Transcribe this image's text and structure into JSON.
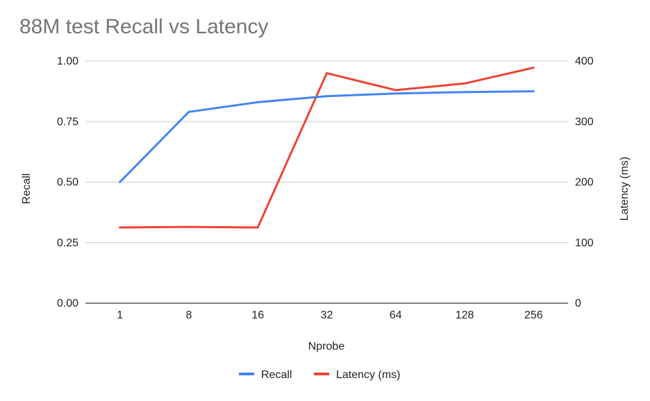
{
  "chart_data": {
    "type": "line",
    "title": "88M test Recall vs Latency",
    "categories": [
      "1",
      "8",
      "16",
      "32",
      "64",
      "128",
      "256"
    ],
    "xlabel": "Nprobe",
    "ylabel": "Recall",
    "ylabel_right": "Latency (ms)",
    "ylim": [
      0,
      1
    ],
    "ylim_right": [
      0,
      400
    ],
    "yticks": [
      "0.00",
      "0.25",
      "0.50",
      "0.75",
      "1.00"
    ],
    "yticks_right": [
      "0",
      "100",
      "200",
      "300",
      "400"
    ],
    "grid": true,
    "legend": "bottom",
    "series": [
      {
        "name": "Recall",
        "axis": "left",
        "color": "#4285F4",
        "values": [
          0.5,
          0.79,
          0.83,
          0.855,
          0.866,
          0.872,
          0.875
        ]
      },
      {
        "name": "Latency (ms)",
        "axis": "right",
        "color": "#EA4335",
        "values": [
          125,
          126,
          125,
          380,
          352,
          363,
          389
        ]
      }
    ]
  }
}
